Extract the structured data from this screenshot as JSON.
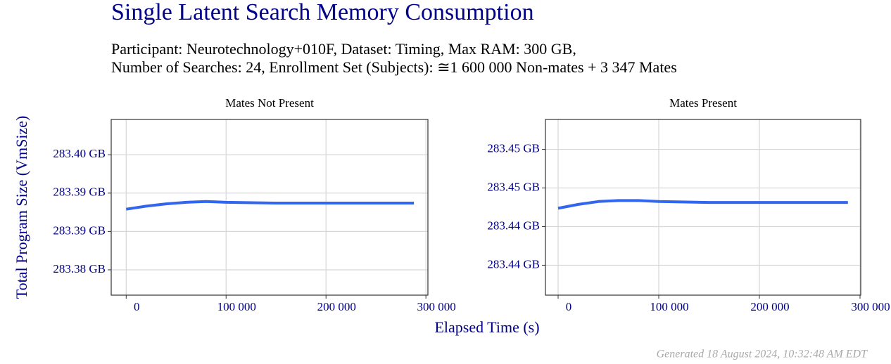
{
  "title": "Single Latent Search Memory Consumption",
  "subtitle": [
    "Participant: Neurotechnology+010F, Dataset: Timing, Max RAM: 300 GB,",
    "Number of Searches: 24, Enrollment Set (Subjects): ≅1 600 000 Non-mates + 3 347 Mates"
  ],
  "y_label": "Total Program Size (VmSize)",
  "x_label": "Elapsed Time (s)",
  "footer": "Generated 18 August 2024, 10:32:48 AM EDT",
  "chart_data": [
    {
      "type": "line",
      "title": "Mates Not Present",
      "color": "#3366ee",
      "grid": true,
      "x": [
        0,
        20000,
        40000,
        60000,
        80000,
        100000,
        150000,
        200000,
        250000,
        288000
      ],
      "values": [
        283.3909,
        283.3913,
        283.3916,
        283.3918,
        283.3919,
        283.3918,
        283.3917,
        283.3917,
        283.3917,
        283.3917
      ],
      "xlim": [
        -15000,
        302000
      ],
      "ylim": [
        283.3797,
        283.4026
      ],
      "xticks": [
        0,
        {
          "value": 100000,
          "label": "100 000"
        },
        {
          "value": 200000,
          "label": "200 000"
        },
        {
          "value": 300000,
          "label": "300 000"
        }
      ],
      "yticks": [
        {
          "value": 283.383,
          "label": "283.38 GB"
        },
        {
          "value": 283.388,
          "label": "283.39 GB"
        },
        {
          "value": 283.393,
          "label": "283.39 GB"
        },
        {
          "value": 283.398,
          "label": "283.40 GB"
        }
      ]
    },
    {
      "type": "line",
      "title": "Mates Present",
      "color": "#3366ee",
      "grid": true,
      "x": [
        0,
        20000,
        40000,
        60000,
        80000,
        100000,
        150000,
        200000,
        250000,
        288000
      ],
      "values": [
        283.4459,
        283.4463,
        283.4466,
        283.4467,
        283.4467,
        283.4466,
        283.4465,
        283.4465,
        283.4465,
        283.4465
      ],
      "xlim": [
        -12600,
        300700
      ],
      "ylim": [
        283.4369,
        283.4551
      ],
      "xticks": [
        0,
        {
          "value": 100000,
          "label": "100 000"
        },
        {
          "value": 200000,
          "label": "200 000"
        },
        {
          "value": 300000,
          "label": "300 000"
        }
      ],
      "yticks": [
        {
          "value": 283.44,
          "label": "283.44 GB"
        },
        {
          "value": 283.444,
          "label": "283.44 GB"
        },
        {
          "value": 283.448,
          "label": "283.45 GB"
        },
        {
          "value": 283.452,
          "label": "283.45 GB"
        }
      ]
    }
  ]
}
